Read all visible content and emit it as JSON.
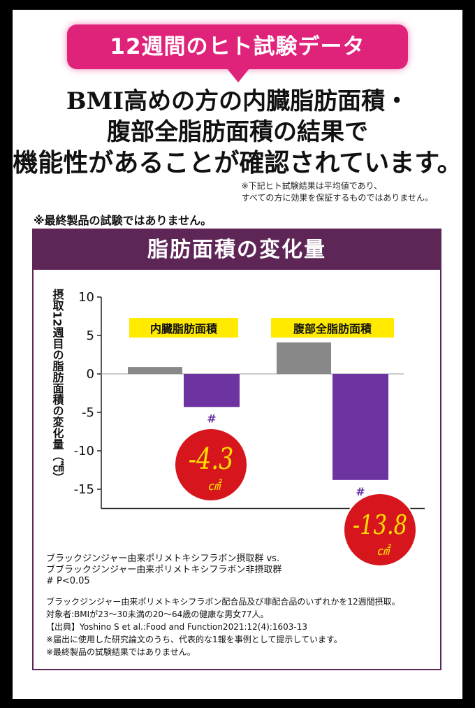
{
  "badge": {
    "text": "12週間のヒト試験データ"
  },
  "headline": {
    "line1": "BMI高めの方の内臓脂肪面積・",
    "line2": "腹部全脂肪面積の結果で",
    "line3": "機能性があることが確認されています。"
  },
  "note_right": {
    "line1": "※下記ヒト試験結果は平均値であり、",
    "line2": "すべての方に効果を保証するものではありません。"
  },
  "note_left": "※最終製品の試験ではありません。",
  "panel_title": "脂肪面積の変化量",
  "chart_data": {
    "type": "bar",
    "categories": [
      "内臓脂肪面積",
      "腹部全脂肪面積"
    ],
    "series": [
      {
        "values": [
          0.9,
          4.1
        ],
        "color": "#888888"
      },
      {
        "values": [
          -4.3,
          -13.8
        ],
        "color": "#6c33a1"
      }
    ],
    "ylabel": "摂取12週目の脂肪面積の変化量（㎠）",
    "ylim": [
      -17.5,
      10
    ],
    "yticks": [
      10,
      5,
      0,
      -5,
      -10,
      -15
    ],
    "significance_mark": "#",
    "callouts": [
      {
        "value": "-4.3",
        "unit": "㎠"
      },
      {
        "value": "-13.8",
        "unit": "㎠"
      }
    ],
    "highlight_color": "#ffea00",
    "callout_color": "#d6161c",
    "callout_text_color": "#ffe100"
  },
  "legend": {
    "line1": "ブラックジンジャー由来ポリメトキシフラボン摂取群 vs.",
    "line2": "ブブラックジンジャー由来ポリメトキシフラボン非摂取群",
    "line3": "# P<0.05"
  },
  "footnotes": [
    "ブラックジンジャー由来ポリメトキシフラボン配合品及び非配合品のいずれかを12週間摂取。",
    "対象者:BMIが23〜30未満の20〜64歳の健康な男女77人。",
    "【出典】Yoshino S et al.:Food and Function2021:12(4):1603-13",
    "※届出に使用した研究論文のうち、代表的な1報を事例として提示しています。",
    "※最終製品の試験結果ではありません。"
  ]
}
